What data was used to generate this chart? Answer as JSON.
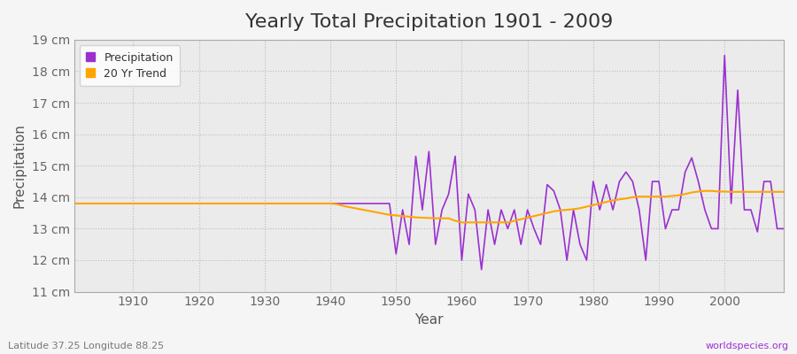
{
  "title": "Yearly Total Precipitation 1901 - 2009",
  "xlabel": "Year",
  "ylabel": "Precipitation",
  "subtitle": "Latitude 37.25 Longitude 88.25",
  "watermark": "worldspecies.org",
  "years": [
    1901,
    1902,
    1903,
    1904,
    1905,
    1906,
    1907,
    1908,
    1909,
    1910,
    1911,
    1912,
    1913,
    1914,
    1915,
    1916,
    1917,
    1918,
    1919,
    1920,
    1921,
    1922,
    1923,
    1924,
    1925,
    1926,
    1927,
    1928,
    1929,
    1930,
    1931,
    1932,
    1933,
    1934,
    1935,
    1936,
    1937,
    1938,
    1939,
    1940,
    1941,
    1942,
    1943,
    1944,
    1945,
    1946,
    1947,
    1948,
    1949,
    1950,
    1951,
    1952,
    1953,
    1954,
    1955,
    1956,
    1957,
    1958,
    1959,
    1960,
    1961,
    1962,
    1963,
    1964,
    1965,
    1966,
    1967,
    1968,
    1969,
    1970,
    1971,
    1972,
    1973,
    1974,
    1975,
    1976,
    1977,
    1978,
    1979,
    1980,
    1981,
    1982,
    1983,
    1984,
    1985,
    1986,
    1987,
    1988,
    1989,
    1990,
    1991,
    1992,
    1993,
    1994,
    1995,
    1996,
    1997,
    1998,
    1999,
    2000,
    2001,
    2002,
    2003,
    2004,
    2005,
    2006,
    2007,
    2008,
    2009
  ],
  "precipitation": [
    13.8,
    13.8,
    13.8,
    13.8,
    13.8,
    13.8,
    13.8,
    13.8,
    13.8,
    13.8,
    13.8,
    13.8,
    13.8,
    13.8,
    13.8,
    13.8,
    13.8,
    13.8,
    13.8,
    13.8,
    13.8,
    13.8,
    13.8,
    13.8,
    13.8,
    13.8,
    13.8,
    13.8,
    13.8,
    13.8,
    13.8,
    13.8,
    13.8,
    13.8,
    13.8,
    13.8,
    13.8,
    13.8,
    13.8,
    13.8,
    13.8,
    13.8,
    13.8,
    13.8,
    13.8,
    13.8,
    13.8,
    13.8,
    13.8,
    12.2,
    13.6,
    12.5,
    15.3,
    13.6,
    15.45,
    12.5,
    13.6,
    14.1,
    15.3,
    12.0,
    14.1,
    13.6,
    11.7,
    13.6,
    12.5,
    13.6,
    13.0,
    13.6,
    12.5,
    13.6,
    13.0,
    12.5,
    14.4,
    14.2,
    13.6,
    12.0,
    13.6,
    12.5,
    12.0,
    14.5,
    13.6,
    14.4,
    13.6,
    14.5,
    14.8,
    14.5,
    13.6,
    12.0,
    14.5,
    14.5,
    13.0,
    13.6,
    13.6,
    14.8,
    15.25,
    14.5,
    13.6,
    13.0,
    13.0,
    18.5,
    13.8,
    17.4,
    13.6,
    13.6,
    12.9,
    14.5,
    14.5,
    13.0,
    13.0
  ],
  "trend": [
    13.8,
    13.8,
    13.8,
    13.8,
    13.8,
    13.8,
    13.8,
    13.8,
    13.8,
    13.8,
    13.8,
    13.8,
    13.8,
    13.8,
    13.8,
    13.8,
    13.8,
    13.8,
    13.8,
    13.8,
    13.8,
    13.8,
    13.8,
    13.8,
    13.8,
    13.8,
    13.8,
    13.8,
    13.8,
    13.8,
    13.8,
    13.8,
    13.8,
    13.8,
    13.8,
    13.8,
    13.8,
    13.8,
    13.8,
    13.8,
    13.78,
    13.72,
    13.68,
    13.64,
    13.6,
    13.56,
    13.52,
    13.48,
    13.44,
    13.42,
    13.4,
    13.38,
    13.36,
    13.35,
    13.34,
    13.33,
    13.33,
    13.33,
    13.25,
    13.2,
    13.2,
    13.2,
    13.2,
    13.2,
    13.2,
    13.2,
    13.2,
    13.25,
    13.3,
    13.35,
    13.4,
    13.45,
    13.5,
    13.55,
    13.58,
    13.6,
    13.62,
    13.65,
    13.7,
    13.75,
    13.8,
    13.85,
    13.9,
    13.93,
    13.96,
    14.0,
    14.02,
    14.02,
    14.02,
    14.02,
    14.02,
    14.04,
    14.06,
    14.1,
    14.15,
    14.18,
    14.2,
    14.2,
    14.18,
    14.18,
    14.17,
    14.17,
    14.17,
    14.17,
    14.17,
    14.17,
    14.17,
    14.17,
    14.17
  ],
  "precip_color": "#9b30d0",
  "trend_color": "#ffa500",
  "bg_color": "#f5f5f5",
  "plot_bg_color": "#ebebeb",
  "ylim": [
    11.0,
    19.0
  ],
  "ytick_values": [
    11,
    12,
    13,
    14,
    15,
    16,
    17,
    18,
    19
  ],
  "xtick_values": [
    1910,
    1920,
    1930,
    1940,
    1950,
    1960,
    1970,
    1980,
    1990,
    2000
  ],
  "title_fontsize": 16,
  "label_fontsize": 11,
  "tick_fontsize": 10
}
